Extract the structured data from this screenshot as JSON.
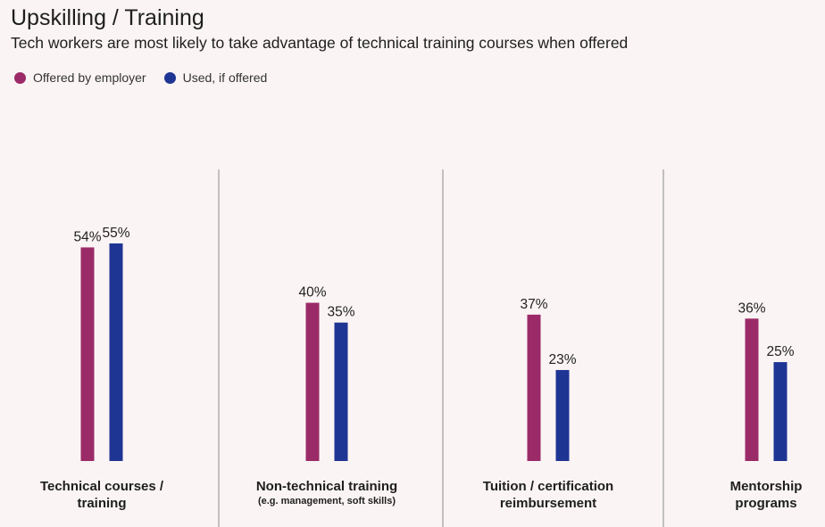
{
  "title": "Upskilling / Training",
  "subtitle": "Tech workers are most likely to take advantage of technical training courses when offered",
  "legend": [
    {
      "label": "Offered by employer",
      "color": "#9b2a68"
    },
    {
      "label": "Used, if offered",
      "color": "#1f3594"
    }
  ],
  "chart_data": {
    "type": "bar",
    "categories": [
      "Technical courses / training",
      "Non-technical training",
      "Tuition / certification reimbursement",
      "Mentorship programs"
    ],
    "category_sublabels": [
      "",
      "(e.g. management, soft skills)",
      "",
      ""
    ],
    "series": [
      {
        "name": "Offered by employer",
        "values": [
          54,
          40,
          37,
          36
        ],
        "labels": [
          "54%",
          "40%",
          "37%",
          "36%"
        ],
        "color": "#9b2a68"
      },
      {
        "name": "Used, if offered",
        "values": [
          55,
          35,
          23,
          25
        ],
        "labels": [
          "55%",
          "35%",
          "23%",
          "25%"
        ],
        "color": "#1f3594"
      }
    ],
    "ylim": [
      0,
      55
    ],
    "grid": false,
    "legend_position": "top-left"
  },
  "category_label_lines": [
    [
      "Technical courses /",
      "training"
    ],
    [
      "Non-technical training"
    ],
    [
      "Tuition / certification",
      "reimbursement"
    ],
    [
      "Mentorship",
      "programs"
    ]
  ]
}
